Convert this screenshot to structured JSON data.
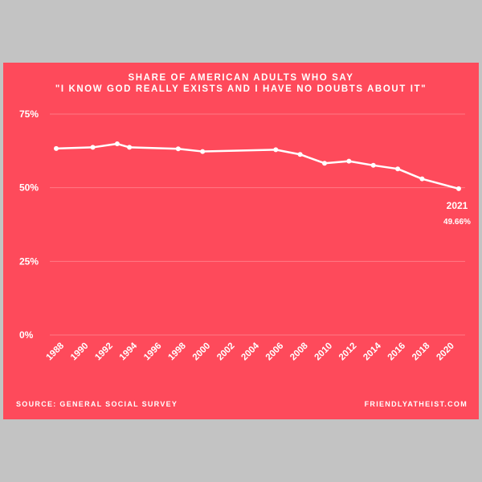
{
  "chart_data": {
    "type": "line",
    "title": "SHARE OF AMERICAN ADULTS WHO SAY",
    "subtitle": "\"I KNOW GOD REALLY EXISTS AND I HAVE NO DOUBTS ABOUT IT\"",
    "x_ticks": [
      "1988",
      "1990",
      "1992",
      "1994",
      "1996",
      "1998",
      "2000",
      "2002",
      "2004",
      "2006",
      "2008",
      "2010",
      "2012",
      "2014",
      "2016",
      "2018",
      "2020"
    ],
    "y_ticks": [
      "75%",
      "50%",
      "25%",
      "0%"
    ],
    "y_tick_values": [
      75,
      50,
      25,
      0
    ],
    "xlim": [
      1988,
      2021
    ],
    "ylim": [
      0,
      75
    ],
    "series": [
      {
        "x": [
          1988,
          1991,
          1993,
          1994,
          1998,
          2000,
          2006,
          2008,
          2010,
          2012,
          2014,
          2016,
          2018,
          2021
        ],
        "y": [
          63.3,
          63.7,
          64.9,
          63.7,
          63.2,
          62.3,
          62.9,
          61.3,
          58.3,
          59.0,
          57.6,
          56.4,
          53.0,
          49.66
        ]
      }
    ],
    "annotation": {
      "year": "2021",
      "value": "49.66%"
    },
    "grid": true,
    "colors": {
      "background": "#fe4a5b",
      "line": "#ffffff",
      "grid": "#ff7a86"
    }
  },
  "footer": {
    "source": "SOURCE: GENERAL SOCIAL SURVEY",
    "site": "FRIENDLYATHEIST.COM"
  }
}
